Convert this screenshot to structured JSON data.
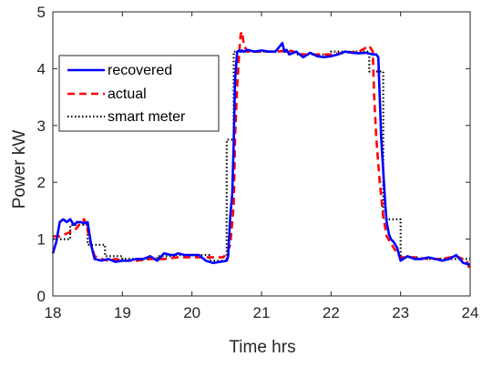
{
  "chart_data": {
    "type": "line",
    "xlabel": "Time hrs",
    "ylabel": "Power kW",
    "xlim": [
      18,
      24
    ],
    "ylim": [
      0,
      5
    ],
    "xticks": [
      "18",
      "19",
      "20",
      "21",
      "22",
      "23",
      "24"
    ],
    "yticks": [
      "0",
      "1",
      "2",
      "3",
      "4",
      "5"
    ],
    "grid": false,
    "legend_position": "top-left",
    "series": [
      {
        "name": "recovered",
        "color": "#0000ff",
        "style": "solid",
        "x": [
          18.0,
          18.05,
          18.1,
          18.15,
          18.2,
          18.25,
          18.3,
          18.35,
          18.4,
          18.45,
          18.5,
          18.55,
          18.6,
          18.7,
          18.8,
          18.9,
          19.0,
          19.1,
          19.2,
          19.3,
          19.4,
          19.5,
          19.6,
          19.7,
          19.75,
          19.8,
          19.9,
          20.0,
          20.1,
          20.2,
          20.3,
          20.4,
          20.5,
          20.52,
          20.55,
          20.58,
          20.6,
          20.62,
          20.65,
          20.68,
          20.7,
          20.72,
          20.75,
          20.8,
          20.9,
          21.0,
          21.1,
          21.2,
          21.3,
          21.33,
          21.36,
          21.4,
          21.5,
          21.6,
          21.7,
          21.8,
          21.9,
          22.0,
          22.1,
          22.2,
          22.3,
          22.4,
          22.5,
          22.6,
          22.65,
          22.68,
          22.7,
          22.72,
          22.75,
          22.78,
          22.8,
          22.83,
          22.86,
          22.9,
          22.95,
          23.0,
          23.1,
          23.2,
          23.3,
          23.4,
          23.5,
          23.6,
          23.7,
          23.8,
          23.9,
          24.0
        ],
        "y": [
          0.75,
          0.95,
          1.3,
          1.35,
          1.3,
          1.35,
          1.25,
          1.3,
          1.3,
          1.28,
          1.3,
          0.9,
          0.65,
          0.62,
          0.65,
          0.6,
          0.62,
          0.62,
          0.65,
          0.65,
          0.7,
          0.62,
          0.75,
          0.72,
          0.72,
          0.75,
          0.72,
          0.72,
          0.72,
          0.62,
          0.58,
          0.6,
          0.62,
          0.7,
          1.4,
          1.8,
          2.7,
          3.8,
          4.3,
          4.32,
          4.3,
          4.32,
          4.3,
          4.33,
          4.3,
          4.32,
          4.3,
          4.3,
          4.45,
          4.3,
          4.33,
          4.25,
          4.3,
          4.2,
          4.28,
          4.22,
          4.2,
          4.22,
          4.25,
          4.3,
          4.28,
          4.27,
          4.28,
          4.25,
          4.25,
          4.2,
          3.5,
          2.8,
          2.2,
          1.6,
          1.3,
          1.1,
          1.0,
          0.95,
          0.85,
          0.62,
          0.7,
          0.65,
          0.65,
          0.68,
          0.65,
          0.62,
          0.65,
          0.72,
          0.58,
          0.55
        ]
      },
      {
        "name": "actual",
        "color": "#ff0000",
        "style": "dashed",
        "x": [
          18.0,
          18.1,
          18.2,
          18.3,
          18.35,
          18.4,
          18.45,
          18.5,
          18.55,
          18.6,
          18.7,
          18.8,
          18.9,
          19.0,
          19.2,
          19.4,
          19.6,
          19.8,
          20.0,
          20.2,
          20.35,
          20.45,
          20.5,
          20.55,
          20.6,
          20.62,
          20.65,
          20.68,
          20.7,
          20.72,
          20.75,
          20.8,
          21.0,
          21.2,
          21.4,
          21.6,
          21.8,
          22.0,
          22.2,
          22.4,
          22.55,
          22.6,
          22.62,
          22.65,
          22.7,
          22.75,
          22.8,
          22.85,
          22.9,
          22.95,
          23.0,
          23.2,
          23.4,
          23.6,
          23.8,
          23.95,
          24.0
        ],
        "y": [
          1.05,
          1.05,
          1.1,
          1.15,
          1.2,
          1.3,
          1.35,
          1.15,
          0.9,
          0.7,
          0.65,
          0.62,
          0.65,
          0.62,
          0.62,
          0.65,
          0.65,
          0.68,
          0.68,
          0.68,
          0.68,
          0.68,
          0.75,
          0.9,
          1.6,
          2.8,
          3.7,
          4.3,
          4.6,
          4.65,
          4.4,
          4.3,
          4.3,
          4.3,
          4.32,
          4.25,
          4.25,
          4.25,
          4.28,
          4.3,
          4.4,
          4.3,
          3.5,
          2.8,
          2.0,
          1.4,
          1.05,
          0.95,
          0.85,
          0.75,
          0.68,
          0.68,
          0.65,
          0.65,
          0.7,
          0.62,
          0.45
        ]
      },
      {
        "name": "smart meter",
        "color": "#000000",
        "style": "dotted",
        "x": [
          18.0,
          18.25,
          18.25,
          18.5,
          18.5,
          18.75,
          18.75,
          19.0,
          19.0,
          19.25,
          19.25,
          19.5,
          19.5,
          19.75,
          19.75,
          20.0,
          20.0,
          20.25,
          20.25,
          20.5,
          20.5,
          20.6,
          20.6,
          20.75,
          20.75,
          21.0,
          21.0,
          21.5,
          21.5,
          22.0,
          22.0,
          22.5,
          22.5,
          22.55,
          22.55,
          22.75,
          22.75,
          23.0,
          23.0,
          23.25,
          23.25,
          23.5,
          23.5,
          24.0
        ],
        "y": [
          1.0,
          1.0,
          1.25,
          1.25,
          0.9,
          0.9,
          0.7,
          0.7,
          0.65,
          0.65,
          0.65,
          0.65,
          0.7,
          0.7,
          0.72,
          0.72,
          0.72,
          0.72,
          0.62,
          0.62,
          2.75,
          2.75,
          4.3,
          4.3,
          4.3,
          4.3,
          4.3,
          4.3,
          4.25,
          4.25,
          4.3,
          4.3,
          4.3,
          4.3,
          3.95,
          3.95,
          1.35,
          1.35,
          0.68,
          0.68,
          0.65,
          0.65,
          0.65,
          0.65
        ]
      }
    ]
  }
}
